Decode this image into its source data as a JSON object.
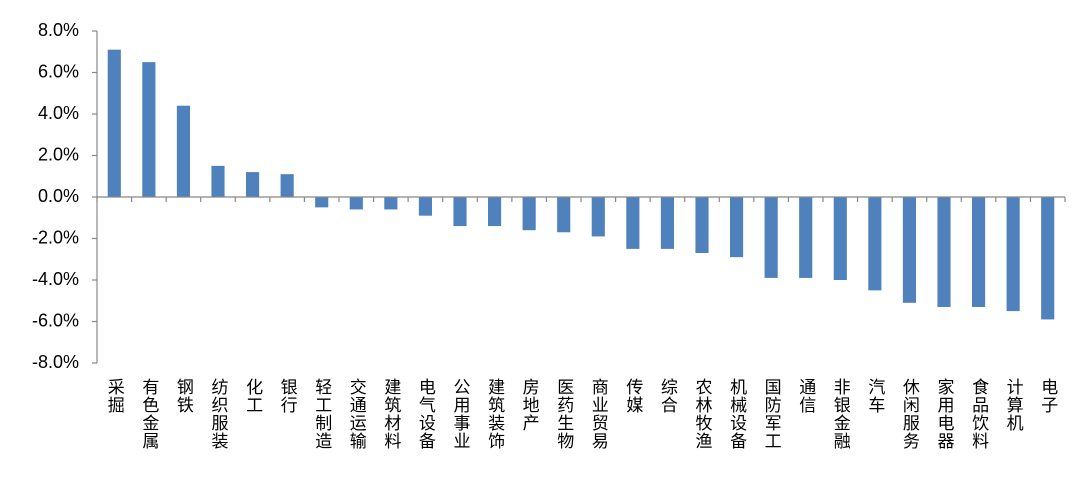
{
  "chart_data": {
    "type": "bar",
    "categories": [
      "采掘",
      "有色金属",
      "钢铁",
      "纺织服装",
      "化工",
      "银行",
      "轻工制造",
      "交通运输",
      "建筑材料",
      "电气设备",
      "公用事业",
      "建筑装饰",
      "房地产",
      "医药生物",
      "商业贸易",
      "传媒",
      "综合",
      "农林牧渔",
      "机械设备",
      "国防军工",
      "通信",
      "非银金融",
      "汽车",
      "休闲服务",
      "家用电器",
      "食品饮料",
      "计算机",
      "电子"
    ],
    "values": [
      7.1,
      6.5,
      4.4,
      1.5,
      1.2,
      1.1,
      -0.5,
      -0.6,
      -0.6,
      -0.9,
      -1.4,
      -1.4,
      -1.6,
      -1.7,
      -1.9,
      -2.5,
      -2.5,
      -2.7,
      -2.9,
      -3.9,
      -3.9,
      -4.0,
      -4.5,
      -5.1,
      -5.3,
      -5.3,
      -5.5,
      -5.9
    ],
    "color": "#4f81bd",
    "ylim": [
      -8,
      8
    ],
    "yticks": [
      {
        "value": -8,
        "label": "-8.0%"
      },
      {
        "value": -6,
        "label": "-6.0%"
      },
      {
        "value": -4,
        "label": "-4.0%"
      },
      {
        "value": -2,
        "label": "-2.0%"
      },
      {
        "value": 0,
        "label": "0.0%"
      },
      {
        "value": 2,
        "label": "2.0%"
      },
      {
        "value": 4,
        "label": "4.0%"
      },
      {
        "value": 6,
        "label": "6.0%"
      },
      {
        "value": 8,
        "label": "8.0%"
      }
    ],
    "grid": false
  }
}
